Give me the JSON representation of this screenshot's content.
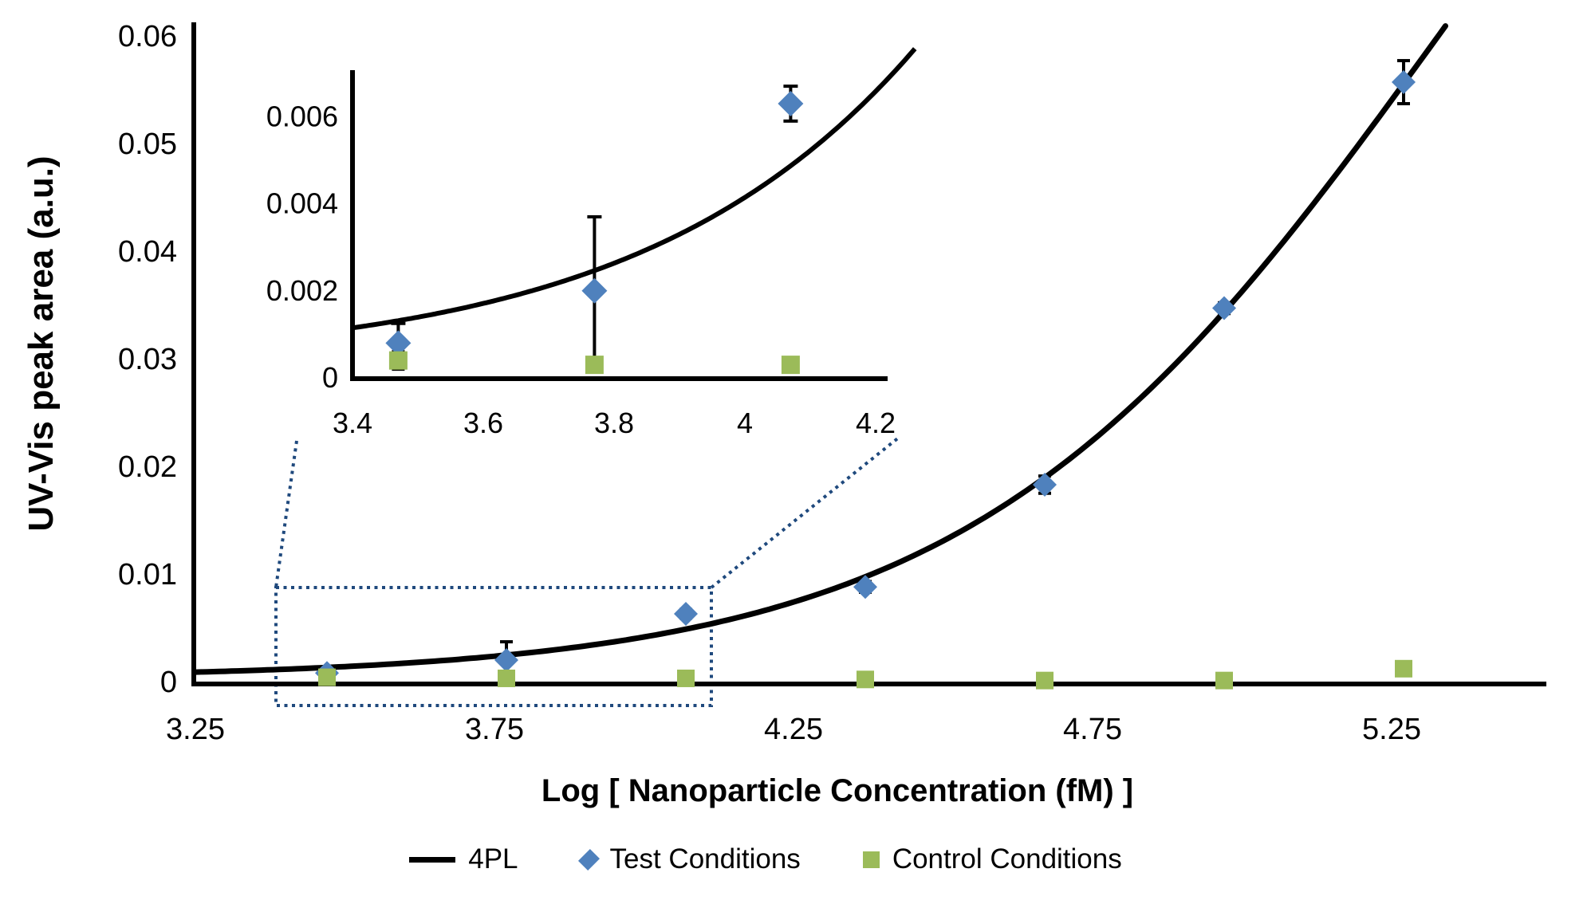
{
  "colors": {
    "test": "#4F81BD",
    "control": "#9BBB59",
    "fit": "#000000",
    "zoom_outline": "#1F497D",
    "axis": "#000000"
  },
  "legend": {
    "items": [
      {
        "label": "4PL",
        "swatch": "line-swatch"
      },
      {
        "label": "Test Conditions",
        "swatch": "diamond-swatch"
      },
      {
        "label": "Control Conditions",
        "swatch": "square-swatch"
      }
    ]
  },
  "chart_data": {
    "type": "scatter",
    "title": "",
    "xlabel": "Log [ Nanoparticle Concentration (fM) ]",
    "ylabel": "UV-Vis peak area (a.u.)",
    "xlim": [
      3.25,
      5.51
    ],
    "ylim": [
      0,
      0.061
    ],
    "x_ticks": [
      3.25,
      3.75,
      4.25,
      4.75,
      5.25
    ],
    "x_tick_labels": [
      "3.25",
      "3.75",
      "4.25",
      "4.75",
      "5.25"
    ],
    "y_ticks": [
      0,
      0.01,
      0.02,
      0.03,
      0.04,
      0.05,
      0.06
    ],
    "y_tick_labels": [
      "0",
      "0.01",
      "0.02",
      "0.03",
      "0.04",
      "0.05",
      "0.06"
    ],
    "grid": false,
    "legend_position": "bottom",
    "x": [
      3.47,
      3.77,
      4.07,
      4.37,
      4.67,
      4.97,
      5.27
    ],
    "series": [
      {
        "name": "Test Conditions",
        "marker": "diamond",
        "color": "#4F81BD",
        "values": [
          0.0008,
          0.002,
          0.0063,
          0.0088,
          0.0183,
          0.0347,
          0.0557
        ],
        "errors": [
          0.00045,
          0.0017,
          0.0004,
          0.0005,
          0.0008,
          0.0005,
          0.002
        ]
      },
      {
        "name": "Control Conditions",
        "marker": "square",
        "color": "#9BBB59",
        "values": [
          0.0004,
          0.0003,
          0.0003,
          0.0002,
          0.0001,
          0.0001,
          0.0012
        ],
        "errors": [
          0.0002,
          0.0001,
          0.0001,
          0,
          0,
          0,
          0.0003
        ]
      }
    ],
    "fit": {
      "name": "4PL",
      "color": "#000000",
      "bottom": 0.0003,
      "top": 0.12,
      "log_ec50": 5.33,
      "hill": 1.112,
      "x_start": 3.25,
      "x_end": 5.34
    },
    "inset": {
      "xlim": [
        3.4,
        4.23
      ],
      "ylim": [
        0,
        0.007
      ],
      "x_ticks": [
        3.4,
        3.6,
        3.8,
        4,
        4.2
      ],
      "x_tick_labels": [
        "3.4",
        "3.6",
        "3.8",
        "4",
        "4.2"
      ],
      "y_ticks": [
        0,
        0.002,
        0.004,
        0.006
      ],
      "y_tick_labels": [
        "0",
        "0.002",
        "0.004",
        "0.006"
      ],
      "points_shown": 3
    },
    "zoom_region": {
      "x_range": [
        3.38,
        4.11
      ],
      "y_range": [
        -0.002,
        0.009
      ]
    }
  }
}
